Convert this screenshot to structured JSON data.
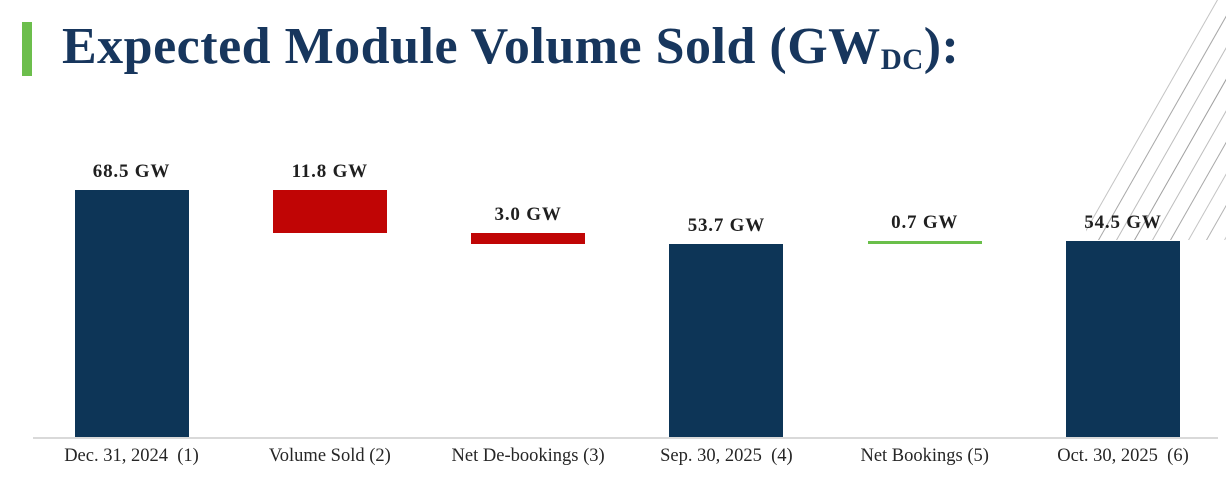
{
  "slide": {
    "title": {
      "prefix": "Expected Module Volume Sold (GW",
      "subscript": "DC",
      "suffix": "):",
      "full_text": "Expected Module Volume Sold (GWDC):"
    }
  },
  "colors": {
    "navy": "#0d3557",
    "red": "#c00505",
    "green": "#6abf4a",
    "title": "#17365d",
    "accent": "#6cbe4c",
    "axis_line": "#d9d9d9",
    "label_text": "#1f1f1f",
    "hatch_line": "#b3b3b3"
  },
  "chart_data": {
    "type": "bar",
    "subtype": "waterfall",
    "unit": "GW",
    "title": "Expected Module Volume Sold (GWDC):",
    "xlabel": "",
    "ylabel": "",
    "ylim": [
      0,
      75
    ],
    "grid": false,
    "legend": "none",
    "categories": [
      "Dec. 31, 2024  (1)",
      "Volume Sold (2)",
      "Net De-bookings (3)",
      "Sep. 30, 2025  (4)",
      "Net Bookings (5)",
      "Oct. 30, 2025  (6)"
    ],
    "bars": [
      {
        "category": "Dec. 31, 2024  (1)",
        "label": "68.5 GW",
        "value": 68.5,
        "kind": "total",
        "span": [
          0,
          68.5
        ],
        "color_key": "navy"
      },
      {
        "category": "Volume Sold (2)",
        "label": "11.8 GW",
        "value": -11.8,
        "kind": "decrease",
        "span": [
          56.7,
          68.5
        ],
        "color_key": "red"
      },
      {
        "category": "Net De-bookings (3)",
        "label": "3.0 GW",
        "value": -3.0,
        "kind": "decrease",
        "span": [
          53.7,
          56.7
        ],
        "color_key": "red"
      },
      {
        "category": "Sep. 30, 2025  (4)",
        "label": "53.7 GW",
        "value": 53.7,
        "kind": "total",
        "span": [
          0,
          53.7
        ],
        "color_key": "navy"
      },
      {
        "category": "Net Bookings (5)",
        "label": "0.7 GW",
        "value": 0.7,
        "kind": "increase",
        "span": [
          53.7,
          54.4
        ],
        "color_key": "green"
      },
      {
        "category": "Oct. 30, 2025  (6)",
        "label": "54.5 GW",
        "value": 54.5,
        "kind": "total",
        "span": [
          0,
          54.5
        ],
        "color_key": "navy"
      }
    ]
  }
}
